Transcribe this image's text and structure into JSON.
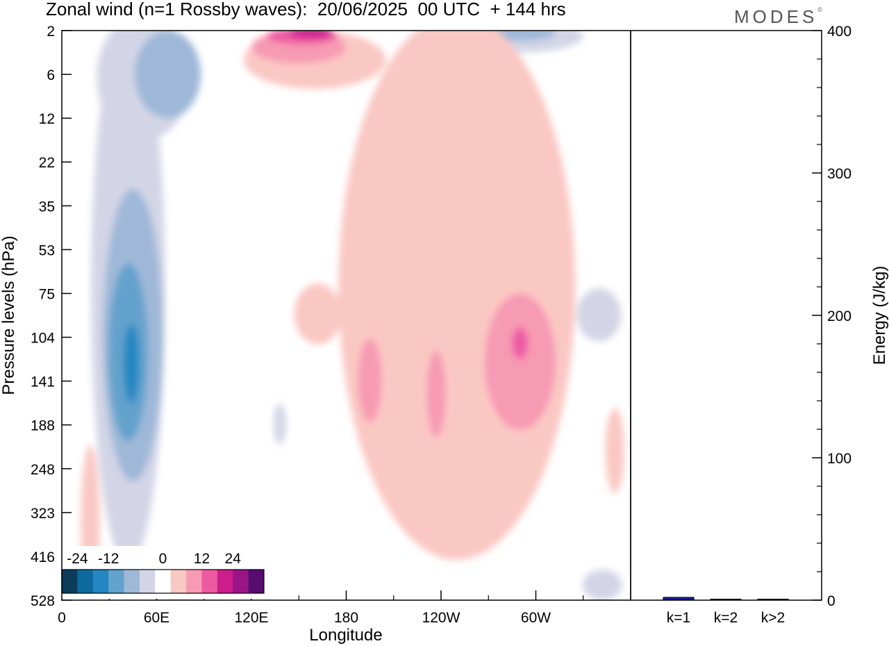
{
  "header": {
    "title": "Zonal wind (n=1 Rossby waves):  20/06/2025  00 UTC  + 144 hrs",
    "brand": "MODES",
    "brand_mark": "©"
  },
  "chart_data": [
    {
      "type": "heatmap",
      "xlabel": "Longitude",
      "ylabel": "Pressure levels (hPa)",
      "x_ticks": [
        "0",
        "60E",
        "120E",
        "180",
        "120W",
        "60W"
      ],
      "x_tick_degrees": [
        0,
        60,
        120,
        180,
        240,
        300
      ],
      "x_range_degrees": [
        0,
        360
      ],
      "y_levels": [
        "2",
        "6",
        "12",
        "22",
        "35",
        "53",
        "75",
        "104",
        "141",
        "188",
        "248",
        "323",
        "416",
        "528"
      ],
      "colorbar": {
        "labels": [
          "-24",
          "-12",
          "0",
          "12",
          "24"
        ],
        "colors": [
          "#0b3d5b",
          "#0e6a9e",
          "#2387c2",
          "#63a2cc",
          "#9fb8d8",
          "#d3d5e6",
          "#ffffff",
          "#fac8c3",
          "#f79ab3",
          "#ee5aa2",
          "#cd1c8c",
          "#9b1486",
          "#560d6f"
        ]
      },
      "regions": [
        {
          "value": -6,
          "color": "#d3d5e6",
          "center": [
            42,
            160
          ],
          "size": [
            47,
            560
          ]
        },
        {
          "value": -12,
          "color": "#9fb8d8",
          "center": [
            45,
            150
          ],
          "size": [
            38,
            240
          ]
        },
        {
          "value": -18,
          "color": "#63a2cc",
          "center": [
            42,
            135
          ],
          "size": [
            25,
            150
          ]
        },
        {
          "value": -24,
          "color": "#2387c2",
          "center": [
            44,
            130
          ],
          "size": [
            10,
            70
          ]
        },
        {
          "value": -6,
          "color": "#d3d5e6",
          "center": [
            52,
            7
          ],
          "size": [
            60,
            20
          ]
        },
        {
          "value": -12,
          "color": "#9fb8d8",
          "center": [
            67,
            7
          ],
          "size": [
            42,
            10
          ]
        },
        {
          "value": -6,
          "color": "#d3d5e6",
          "center": [
            138,
            190
          ],
          "size": [
            8,
            50
          ]
        },
        {
          "value": -6,
          "color": "#d3d5e6",
          "center": [
            290,
            2.5
          ],
          "size": [
            80,
            3
          ]
        },
        {
          "value": -12,
          "color": "#9fb8d8",
          "center": [
            290,
            2.2
          ],
          "size": [
            45,
            1.5
          ]
        },
        {
          "value": -6,
          "color": "#d3d5e6",
          "center": [
            340,
            90
          ],
          "size": [
            28,
            35
          ]
        },
        {
          "value": -6,
          "color": "#d3d5e6",
          "center": [
            342,
            500
          ],
          "size": [
            25,
            100
          ]
        },
        {
          "value": 6,
          "color": "#fac8c3",
          "center": [
            160,
            5
          ],
          "size": [
            90,
            6
          ]
        },
        {
          "value": 12,
          "color": "#f79ab3",
          "center": [
            150,
            3.5
          ],
          "size": [
            60,
            3
          ]
        },
        {
          "value": 18,
          "color": "#ee5aa2",
          "center": [
            152,
            2.5
          ],
          "size": [
            45,
            1.5
          ]
        },
        {
          "value": 24,
          "color": "#cd1c8c",
          "center": [
            158,
            2.2
          ],
          "size": [
            28,
            1
          ]
        },
        {
          "value": 6,
          "color": "#fac8c3",
          "center": [
            250,
            200
          ],
          "size": [
            150,
            450
          ]
        },
        {
          "value": 12,
          "color": "#f79ab3",
          "center": [
            290,
            135
          ],
          "size": [
            45,
            120
          ]
        },
        {
          "value": 18,
          "color": "#ee5aa2",
          "center": [
            290,
            110
          ],
          "size": [
            10,
            25
          ]
        },
        {
          "value": 12,
          "color": "#f79ab3",
          "center": [
            195,
            145
          ],
          "size": [
            15,
            80
          ]
        },
        {
          "value": 12,
          "color": "#f79ab3",
          "center": [
            237,
            160
          ],
          "size": [
            12,
            90
          ]
        },
        {
          "value": 6,
          "color": "#fac8c3",
          "center": [
            162,
            90
          ],
          "size": [
            30,
            40
          ]
        },
        {
          "value": 6,
          "color": "#fac8c3",
          "center": [
            350,
            230
          ],
          "size": [
            12,
            120
          ]
        },
        {
          "value": 6,
          "color": "#fac8c3",
          "center": [
            18,
            380
          ],
          "size": [
            12,
            330
          ]
        },
        {
          "value": 6,
          "color": "#fac8c3",
          "center": [
            75,
            510
          ],
          "size": [
            30,
            40
          ]
        }
      ]
    },
    {
      "type": "bar",
      "categories": [
        "k=1",
        "k=2",
        "k>2"
      ],
      "values": [
        2,
        0.5,
        0.5
      ],
      "ylabel": "Energy (J/kg)",
      "ylim": [
        0,
        400
      ],
      "y_ticks": [
        "0",
        "100",
        "200",
        "300",
        "400"
      ],
      "bar_color": "#1a1a9e"
    }
  ]
}
